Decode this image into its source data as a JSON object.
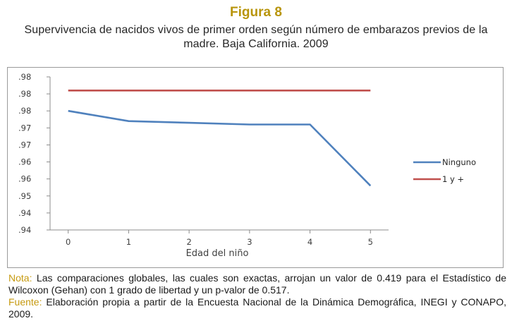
{
  "figure": {
    "title": "Figura 8",
    "subtitle": "Supervivencia de nacidos vivos de primer orden según número de embarazos previos de la madre. Baja California. 2009"
  },
  "notes": {
    "nota_label": "Nota:",
    "nota_text": "Las comparaciones globales, las cuales son exactas, arrojan un valor de  0.419 para el Estadístico de Wilcoxon (Gehan) con 1 grado de libertad  y un p-valor de  0.517.",
    "fuente_label": "Fuente:",
    "fuente_text": "Elaboración propia a partir de la Encuesta Nacional de la Dinámica Demográfica, INEGI y CONAPO, 2009."
  },
  "chart_data": {
    "type": "line",
    "title": "",
    "xlabel": "Edad del niño",
    "ylabel": "",
    "x": [
      0,
      1,
      2,
      3,
      4,
      5
    ],
    "xlim": [
      -0.3,
      5.3
    ],
    "ylim": [
      0.9412,
      0.9862
    ],
    "yticks": [
      0.9412,
      0.9462,
      0.9512,
      0.9562,
      0.9612,
      0.9662,
      0.9712,
      0.9762,
      0.9812,
      0.9862
    ],
    "ytick_labels": [
      ".94",
      ".94",
      ".95",
      ".96",
      ".96",
      ".97",
      ".97",
      ".98",
      ".98",
      ".98"
    ],
    "grid": false,
    "legend_position": "right",
    "series": [
      {
        "name": "Ninguno",
        "color": "#4f81bd",
        "values": [
          0.9762,
          0.9732,
          0.9727,
          0.9722,
          0.9722,
          0.9542
        ]
      },
      {
        "name": "1 y +",
        "color": "#c0504d",
        "values": [
          0.9822,
          0.9822,
          0.9822,
          0.9822,
          0.9822,
          0.9822
        ]
      }
    ]
  }
}
